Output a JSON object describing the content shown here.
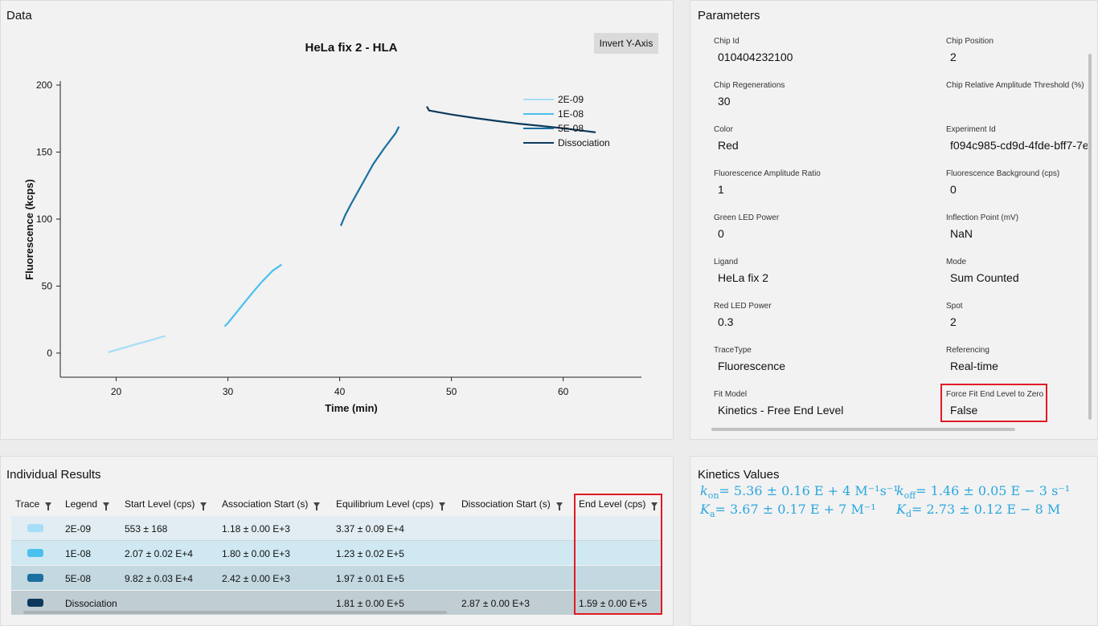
{
  "data_panel": {
    "title": "Data",
    "invert_button": "Invert Y-Axis"
  },
  "chart_data": {
    "type": "line",
    "title": "HeLa fix 2 - HLA",
    "xlabel": "Time (min)",
    "ylabel": "Fluorescence (kcps)",
    "xlim": [
      15,
      67
    ],
    "ylim": [
      -18,
      203
    ],
    "xticks": [
      20,
      30,
      40,
      50,
      60
    ],
    "yticks": [
      0,
      50,
      100,
      150,
      200
    ],
    "legend_position": "top-right",
    "series": [
      {
        "name": "2E-09",
        "color": "#a6ddf7",
        "x": [
          19.3,
          20,
          21,
          22,
          23,
          24,
          24.4
        ],
        "y": [
          0.6,
          2.3,
          4.7,
          7.1,
          9.4,
          11.8,
          12.8
        ]
      },
      {
        "name": "1E-08",
        "color": "#49c0ef",
        "x": [
          29.7,
          30,
          31,
          32,
          33,
          34,
          34.8
        ],
        "y": [
          20,
          22.4,
          32.8,
          43,
          52.9,
          61.5,
          66
        ]
      },
      {
        "name": "5E-08",
        "color": "#1a6fa0",
        "x": [
          40.1,
          40.5,
          41,
          42,
          43,
          44,
          45,
          45.3
        ],
        "y": [
          95,
          103,
          111,
          126,
          141,
          153,
          164,
          169
        ]
      },
      {
        "name": "Dissociation",
        "color": "#0d3a5c",
        "x": [
          47.8,
          48,
          50,
          52,
          54,
          56,
          58,
          60,
          62,
          62.9
        ],
        "y": [
          184,
          181,
          178,
          175.5,
          173.3,
          171.2,
          169.5,
          167.7,
          165.7,
          164.7
        ]
      }
    ]
  },
  "parameters": {
    "title": "Parameters",
    "items": [
      {
        "label": "Chip Id",
        "value": "010404232100"
      },
      {
        "label": "Chip Position",
        "value": "2"
      },
      {
        "label": "Chip Regenerations",
        "value": "30"
      },
      {
        "label": "Chip Relative Amplitude Threshold (%)",
        "value": ""
      },
      {
        "label": "Color",
        "value": "Red"
      },
      {
        "label": "Experiment Id",
        "value": "f094c985-cd9d-4fde-bff7-7e"
      },
      {
        "label": "Fluorescence Amplitude Ratio",
        "value": "1"
      },
      {
        "label": "Fluorescence Background (cps)",
        "value": "0"
      },
      {
        "label": "Green LED Power",
        "value": "0"
      },
      {
        "label": "Inflection Point (mV)",
        "value": "NaN"
      },
      {
        "label": "Ligand",
        "value": "HeLa fix 2"
      },
      {
        "label": "Mode",
        "value": "Sum Counted"
      },
      {
        "label": "Red LED Power",
        "value": "0.3"
      },
      {
        "label": "Spot",
        "value": "2"
      },
      {
        "label": "TraceType",
        "value": "Fluorescence"
      },
      {
        "label": "Referencing",
        "value": "Real-time"
      },
      {
        "label": "Fit Model",
        "value": "Kinetics - Free End Level"
      },
      {
        "label": "Force Fit End Level to Zero",
        "value": "False"
      }
    ]
  },
  "results": {
    "title": "Individual Results",
    "columns": [
      "Trace",
      "Legend",
      "Start Level (cps)",
      "Association Start (s)",
      "Equilibrium Level (cps)",
      "Dissociation Start (s)",
      "End Level (cps)"
    ],
    "rows": [
      {
        "color": "#a6ddf7",
        "legend": "2E-09",
        "start_level": "553 ± 168",
        "assoc_start": "1.18 ± 0.00 E+3",
        "equil_level": "3.37 ± 0.09 E+4",
        "dissoc_start": "",
        "end_level": ""
      },
      {
        "color": "#49c0ef",
        "legend": "1E-08",
        "start_level": "2.07 ± 0.02 E+4",
        "assoc_start": "1.80 ± 0.00 E+3",
        "equil_level": "1.23 ± 0.02 E+5",
        "dissoc_start": "",
        "end_level": ""
      },
      {
        "color": "#1a6fa0",
        "legend": "5E-08",
        "start_level": "9.82 ± 0.03 E+4",
        "assoc_start": "2.42 ± 0.00 E+3",
        "equil_level": "1.97 ± 0.01 E+5",
        "dissoc_start": "",
        "end_level": ""
      },
      {
        "color": "#0d3a5c",
        "legend": "Dissociation",
        "start_level": "",
        "assoc_start": "",
        "equil_level": "1.81 ± 0.00 E+5",
        "dissoc_start": "2.87 ± 0.00 E+3",
        "end_level": "1.59 ± 0.00 E+5"
      }
    ]
  },
  "kinetics": {
    "title": "Kinetics Values",
    "kon": "= 5.36 ± 0.16 E + 4 M⁻¹s⁻¹",
    "koff": "= 1.46 ± 0.05 E − 3 s⁻¹",
    "ka": "= 3.67 ± 0.17 E + 7 M⁻¹",
    "kd": "= 2.73 ± 0.12 E − 8 M"
  }
}
